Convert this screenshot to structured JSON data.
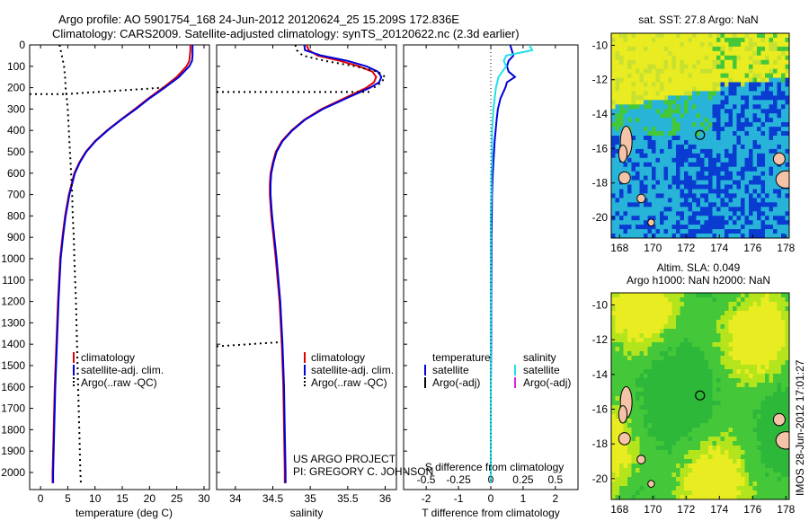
{
  "header": {
    "line1": "Argo profile: AO 5901754_168 24-Jun-2012 20120624_25 15.209S 172.836E",
    "line2": "Climatology: CARS2009. Satellite-adjusted climatology: synTS_20120622.nc (2.3d earlier)"
  },
  "side_text": "IMOS 28-Jun-2012 17:01:27",
  "credit": {
    "line1": "US ARGO PROJECT",
    "line2": "PI: GREGORY C. JOHNSON"
  },
  "colors": {
    "climatology": "#e00000",
    "satellite": "#0000dd",
    "argo": "#000000",
    "satellite_salinity": "#22e0e8",
    "argo_salinity": "#e020e0",
    "map_yellow": "#e8ec20",
    "map_green": "#44c83a",
    "map_cyan": "#28b4d8",
    "map_blue": "#0a3cd2",
    "land": "#f5c4a8"
  },
  "chart_data": [
    {
      "type": "line",
      "panel": "temperature",
      "xlabel": "temperature (deg C)",
      "xlim": [
        -2,
        31
      ],
      "xticks": [
        "0",
        "5",
        "10",
        "15",
        "20",
        "25",
        "30"
      ],
      "ylim": [
        2080,
        0
      ],
      "yticks": [
        "0",
        "100",
        "200",
        "300",
        "400",
        "500",
        "600",
        "700",
        "800",
        "900",
        "1000",
        "1100",
        "1200",
        "1300",
        "1400",
        "1500",
        "1600",
        "1700",
        "1800",
        "1900",
        "2000"
      ],
      "legend": [
        "climatology",
        "satellite-adj. clim.",
        "Argo(..raw -QC)"
      ],
      "depth": [
        0,
        25,
        50,
        75,
        100,
        150,
        200,
        250,
        300,
        350,
        400,
        450,
        500,
        550,
        600,
        700,
        800,
        900,
        1000,
        1200,
        1400,
        1600,
        1800,
        2000,
        2050
      ],
      "series": [
        {
          "name": "climatology",
          "style": "solid",
          "color": "#e00000",
          "values": [
            27.5,
            27.5,
            27.4,
            27.3,
            26.8,
            25.0,
            22.5,
            19.8,
            17.3,
            14.7,
            12.2,
            10.0,
            8.3,
            7.1,
            6.2,
            5.2,
            4.5,
            4.0,
            3.6,
            3.2,
            2.9,
            2.6,
            2.4,
            2.2,
            2.2
          ]
        },
        {
          "name": "satellite-adj. clim.",
          "style": "solid",
          "color": "#0000dd",
          "values": [
            27.9,
            27.9,
            27.9,
            27.8,
            27.3,
            25.4,
            22.8,
            20.0,
            17.5,
            14.8,
            12.3,
            10.1,
            8.4,
            7.2,
            6.3,
            5.3,
            4.6,
            4.1,
            3.7,
            3.3,
            3.0,
            2.7,
            2.5,
            2.3,
            2.3
          ]
        },
        {
          "name": "Argo(..raw -QC)",
          "style": "dotted",
          "color": "#000000",
          "values": [
            3.5,
            3.7,
            3.9,
            4.1,
            4.3,
            4.5,
            4.6,
            4.8,
            5.0,
            5.1,
            5.2,
            5.3,
            5.4,
            5.5,
            5.6,
            5.8,
            5.9,
            6.1,
            6.2,
            6.5,
            6.7,
            6.9,
            7.1,
            7.3,
            7.4
          ]
        }
      ]
    },
    {
      "type": "line",
      "panel": "salinity",
      "xlabel": "salinity",
      "xlim": [
        33.75,
        36.15
      ],
      "xticks": [
        "34",
        "34.5",
        "35",
        "35.5",
        "36"
      ],
      "ylim": [
        2080,
        0
      ],
      "legend": [
        "climatology",
        "satellite-adj. clim.",
        "Argo(..raw -QC)"
      ],
      "depth": [
        0,
        25,
        50,
        75,
        100,
        125,
        150,
        175,
        200,
        250,
        300,
        350,
        400,
        450,
        500,
        550,
        600,
        650,
        700,
        750,
        800,
        900,
        1000,
        1200,
        1400,
        1600,
        1800,
        2000,
        2050
      ],
      "series": [
        {
          "name": "climatology",
          "style": "solid",
          "color": "#e00000",
          "values": [
            34.95,
            34.98,
            35.1,
            35.4,
            35.65,
            35.83,
            35.88,
            35.85,
            35.75,
            35.45,
            35.15,
            34.92,
            34.75,
            34.62,
            34.54,
            34.5,
            34.47,
            34.46,
            34.46,
            34.47,
            34.48,
            34.51,
            34.54,
            34.59,
            34.62,
            34.64,
            34.65,
            34.66,
            34.66
          ]
        },
        {
          "name": "satellite-adj. clim.",
          "style": "solid",
          "color": "#0000dd",
          "values": [
            34.92,
            34.93,
            35.15,
            35.5,
            35.75,
            35.9,
            35.95,
            35.92,
            35.8,
            35.48,
            35.17,
            34.93,
            34.76,
            34.63,
            34.55,
            34.51,
            34.48,
            34.47,
            34.47,
            34.48,
            34.49,
            34.52,
            34.55,
            34.6,
            34.63,
            34.65,
            34.66,
            34.67,
            34.67
          ]
        },
        {
          "name": "Argo(..raw -QC)",
          "style": "dotted",
          "color": "#000000",
          "values": [
            34.8,
            34.82,
            34.9,
            35.2,
            35.6,
            35.9,
            36.0,
            35.95,
            35.85
          ]
        }
      ]
    },
    {
      "type": "line",
      "panel": "difference",
      "xlabel": "T difference from climatology",
      "xlabel2": "S difference from climatology",
      "xlim_T": [
        -2.7,
        2.7
      ],
      "xticks_T": [
        "-2",
        "-1",
        "0",
        "1",
        "2"
      ],
      "xticks_S": [
        "-0.5",
        "-0.25",
        "0",
        "0.25",
        "0.5"
      ],
      "ylim": [
        2080,
        0
      ],
      "legend": {
        "temperature_title": "temperature",
        "salinity_title": "salinity",
        "items": [
          "satellite",
          "Argo(-adj)",
          "satellite",
          "Argo(-adj)"
        ]
      },
      "depth": [
        0,
        25,
        50,
        75,
        100,
        125,
        150,
        175,
        200,
        250,
        300,
        350,
        400,
        450,
        500,
        550,
        600,
        650,
        700,
        800,
        900,
        1000,
        1200,
        1400,
        1600,
        1800,
        2000,
        2050
      ],
      "series": [
        {
          "name": "satellite",
          "quantity": "temperature",
          "style": "solid",
          "color": "#0000dd",
          "units": "deg C",
          "values": [
            0.6,
            0.65,
            0.7,
            0.55,
            0.5,
            0.55,
            0.75,
            0.5,
            0.45,
            0.3,
            0.22,
            0.18,
            0.15,
            0.12,
            0.1,
            0.08,
            0.06,
            0.05,
            0.04,
            0.03,
            0.02,
            0.02,
            0.01,
            0.01,
            0.0,
            0.0,
            0.0,
            0.0
          ]
        },
        {
          "name": "satellite",
          "quantity": "salinity",
          "style": "solid",
          "color": "#22e0e8",
          "units": "psu",
          "values": [
            0.3,
            0.32,
            0.12,
            0.1,
            0.12,
            0.09,
            0.06,
            0.05,
            0.04,
            0.03,
            0.02,
            0.015,
            0.01,
            0.01,
            0.01,
            0.01,
            0.005,
            0.005,
            0.005,
            0.0,
            0.0,
            0.0,
            0.0,
            0.0,
            0.0,
            0.0,
            0.0,
            0.0
          ]
        },
        {
          "name": "Argo(-adj)",
          "quantity": "temperature",
          "style": "dotted",
          "color": "#000000",
          "units": "deg C",
          "values": [
            0.0,
            0.0,
            0.0,
            0.0,
            0.0,
            0.0,
            0.0,
            0.0,
            0.0,
            0.0,
            0.0,
            0.0,
            0.0,
            0.0,
            0.0,
            0.0,
            0.0,
            0.0,
            0.0,
            0.0,
            0.0,
            0.0,
            0.0,
            0.0,
            0.0,
            0.0,
            0.0,
            0.0
          ]
        }
      ]
    },
    {
      "type": "heatmap",
      "panel": "sst_map",
      "title": "sat. SST: 27.8 Argo: NaN",
      "xlim": [
        167.5,
        178.2
      ],
      "ylim": [
        -21.2,
        -9.3
      ],
      "xticks": [
        "168",
        "170",
        "172",
        "174",
        "176",
        "178"
      ],
      "yticks": [
        "-10",
        "-12",
        "-14",
        "-16",
        "-18",
        "-20"
      ],
      "profile_location": [
        172.836,
        -15.209
      ]
    },
    {
      "type": "heatmap",
      "panel": "sla_map",
      "title_line1": "Altim. SLA: 0.049",
      "title_line2": "Argo h1000: NaN h2000: NaN",
      "xlim": [
        167.5,
        178.2
      ],
      "ylim": [
        -21.2,
        -9.3
      ],
      "xticks": [
        "168",
        "170",
        "172",
        "174",
        "176",
        "178"
      ],
      "yticks": [
        "-10",
        "-12",
        "-14",
        "-16",
        "-18",
        "-20"
      ],
      "profile_location": [
        172.836,
        -15.209
      ]
    }
  ]
}
